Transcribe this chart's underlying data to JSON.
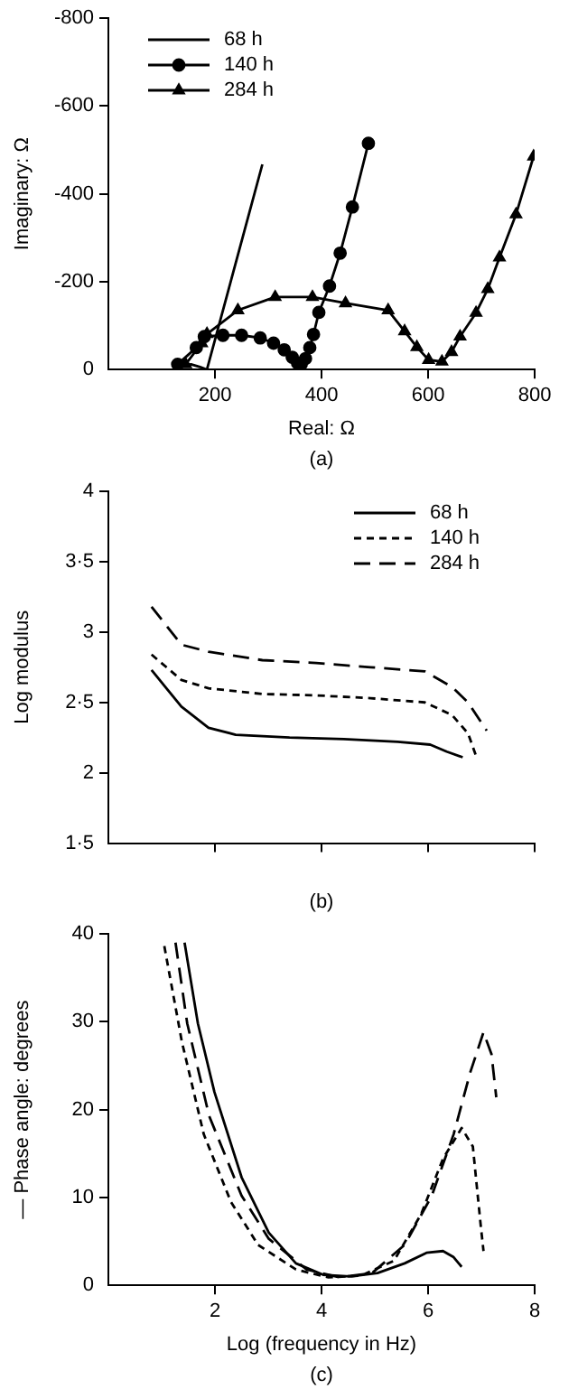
{
  "chart_data": [
    {
      "type": "line",
      "xlabel": "Real: Ω",
      "ylabel": "Imaginary: Ω",
      "annotations": [
        "(a)"
      ],
      "xlim": [
        0,
        800
      ],
      "xticks": [
        200,
        400,
        600,
        800
      ],
      "ylim": [
        0,
        -800
      ],
      "yticks": [
        0,
        -200,
        -400,
        -600,
        -800
      ],
      "legend": "top left",
      "series": [
        {
          "name": "68 h",
          "color": "#000000",
          "marker": "none",
          "line_style": "solid",
          "x": [
            135,
            155,
            172,
            185,
            289
          ],
          "values": [
            -6,
            -12,
            -6,
            0,
            -467
          ]
        },
        {
          "name": "140 h",
          "color": "#000000",
          "marker": "circle",
          "line_style": "solid",
          "x": [
            130,
            165,
            180,
            215,
            250,
            285,
            310,
            330,
            345,
            355,
            362,
            370,
            378,
            385,
            395,
            415,
            435,
            458,
            488
          ],
          "values": [
            -12,
            -50,
            -75,
            -78,
            -78,
            -72,
            -60,
            -45,
            -28,
            -15,
            -12,
            -25,
            -50,
            -80,
            -130,
            -190,
            -265,
            -370,
            -515
          ]
        },
        {
          "name": "284 h",
          "color": "#000000",
          "marker": "triangle",
          "line_style": "solid",
          "x": [
            145,
            175,
            185,
            243,
            313,
            383,
            445,
            525,
            556,
            579,
            601,
            626,
            644,
            660,
            690,
            712,
            734,
            765,
            798
          ],
          "values": [
            -12,
            -60,
            -81,
            -135,
            -165,
            -165,
            -151,
            -135,
            -87,
            -51,
            -22,
            -18,
            -40,
            -75,
            -129,
            -183,
            -255,
            -353,
            -485
          ]
        }
      ]
    },
    {
      "type": "line",
      "ylabel": "Log modulus",
      "annotations": [
        "(b)"
      ],
      "xlim": [
        0,
        8
      ],
      "xticks": [
        {
          "value": 2,
          "label": null
        },
        {
          "value": 4,
          "label": null
        },
        {
          "value": 6,
          "label": null
        },
        {
          "value": 8,
          "label": null
        }
      ],
      "tick_labels": "y",
      "ylim": [
        1.5,
        4
      ],
      "yticks": [
        {
          "value": 1.5,
          "label": "1·5"
        },
        2,
        {
          "value": 2.5,
          "label": "2·5"
        },
        3,
        {
          "value": 3.5,
          "label": "3·5"
        },
        4
      ],
      "legend": "top right",
      "series": [
        {
          "name": "68 h",
          "color": "#000000",
          "line_style": "solid",
          "x": [
            0.81,
            1.37,
            1.88,
            2.39,
            3.4,
            4.42,
            5.43,
            6.04,
            6.35,
            6.65
          ],
          "values": [
            2.73,
            2.47,
            2.32,
            2.27,
            2.25,
            2.24,
            2.22,
            2.2,
            2.15,
            2.11
          ]
        },
        {
          "name": "140 h",
          "color": "#000000",
          "line_style": "dotted",
          "x": [
            0.81,
            1.37,
            1.88,
            2.89,
            3.9,
            4.92,
            5.94,
            6.45,
            6.75,
            6.9
          ],
          "values": [
            2.84,
            2.66,
            2.6,
            2.56,
            2.55,
            2.53,
            2.5,
            2.41,
            2.28,
            2.12
          ]
        },
        {
          "name": "284 h",
          "color": "#000000",
          "line_style": "dashed",
          "x": [
            0.81,
            1.37,
            1.88,
            2.89,
            3.9,
            4.92,
            5.94,
            6.45,
            6.75,
            7.1
          ],
          "values": [
            3.18,
            2.91,
            2.86,
            2.8,
            2.78,
            2.75,
            2.72,
            2.61,
            2.5,
            2.3
          ]
        }
      ]
    },
    {
      "type": "line",
      "xlabel": "Log (frequency in Hz)",
      "ylabel": "— Phase angle: degrees",
      "annotations": [
        "(c)"
      ],
      "xlim": [
        0,
        8
      ],
      "xticks": [
        2,
        4,
        6,
        8
      ],
      "ylim": [
        0,
        40
      ],
      "yticks": [
        0,
        10,
        20,
        30,
        40
      ],
      "series": [
        {
          "color": "#000000",
          "line_style": "solid",
          "x": [
            1.43,
            1.68,
            1.99,
            2.5,
            3.01,
            3.52,
            4.03,
            4.54,
            5.05,
            5.56,
            5.97,
            6.28,
            6.48,
            6.63
          ],
          "values": [
            39,
            29.8,
            22,
            12.3,
            6,
            2.5,
            1.2,
            1,
            1.4,
            2.5,
            3.7,
            3.9,
            3.2,
            2.1
          ]
        },
        {
          "color": "#000000",
          "line_style": "dotted",
          "x": [
            1.05,
            1.38,
            1.79,
            2.3,
            2.81,
            3.52,
            4.13,
            4.74,
            5.36,
            5.87,
            6.28,
            6.63,
            6.84,
            6.99,
            7.04
          ],
          "values": [
            38.6,
            27.7,
            17.2,
            9.5,
            4.6,
            1.8,
            0.9,
            1.1,
            2.8,
            8.1,
            14.4,
            17.9,
            15.8,
            6.7,
            3.9
          ]
        },
        {
          "color": "#000000",
          "line_style": "dashed",
          "x": [
            1.26,
            1.48,
            1.89,
            2.5,
            3.01,
            3.72,
            4.34,
            4.95,
            5.56,
            6.07,
            6.48,
            6.79,
            7.04,
            7.19,
            7.28
          ],
          "values": [
            39,
            29.8,
            19.3,
            10.2,
            5.3,
            1.8,
            0.9,
            1.4,
            4.6,
            10.2,
            17.2,
            24.2,
            28.8,
            26.3,
            21.4
          ]
        }
      ]
    }
  ]
}
